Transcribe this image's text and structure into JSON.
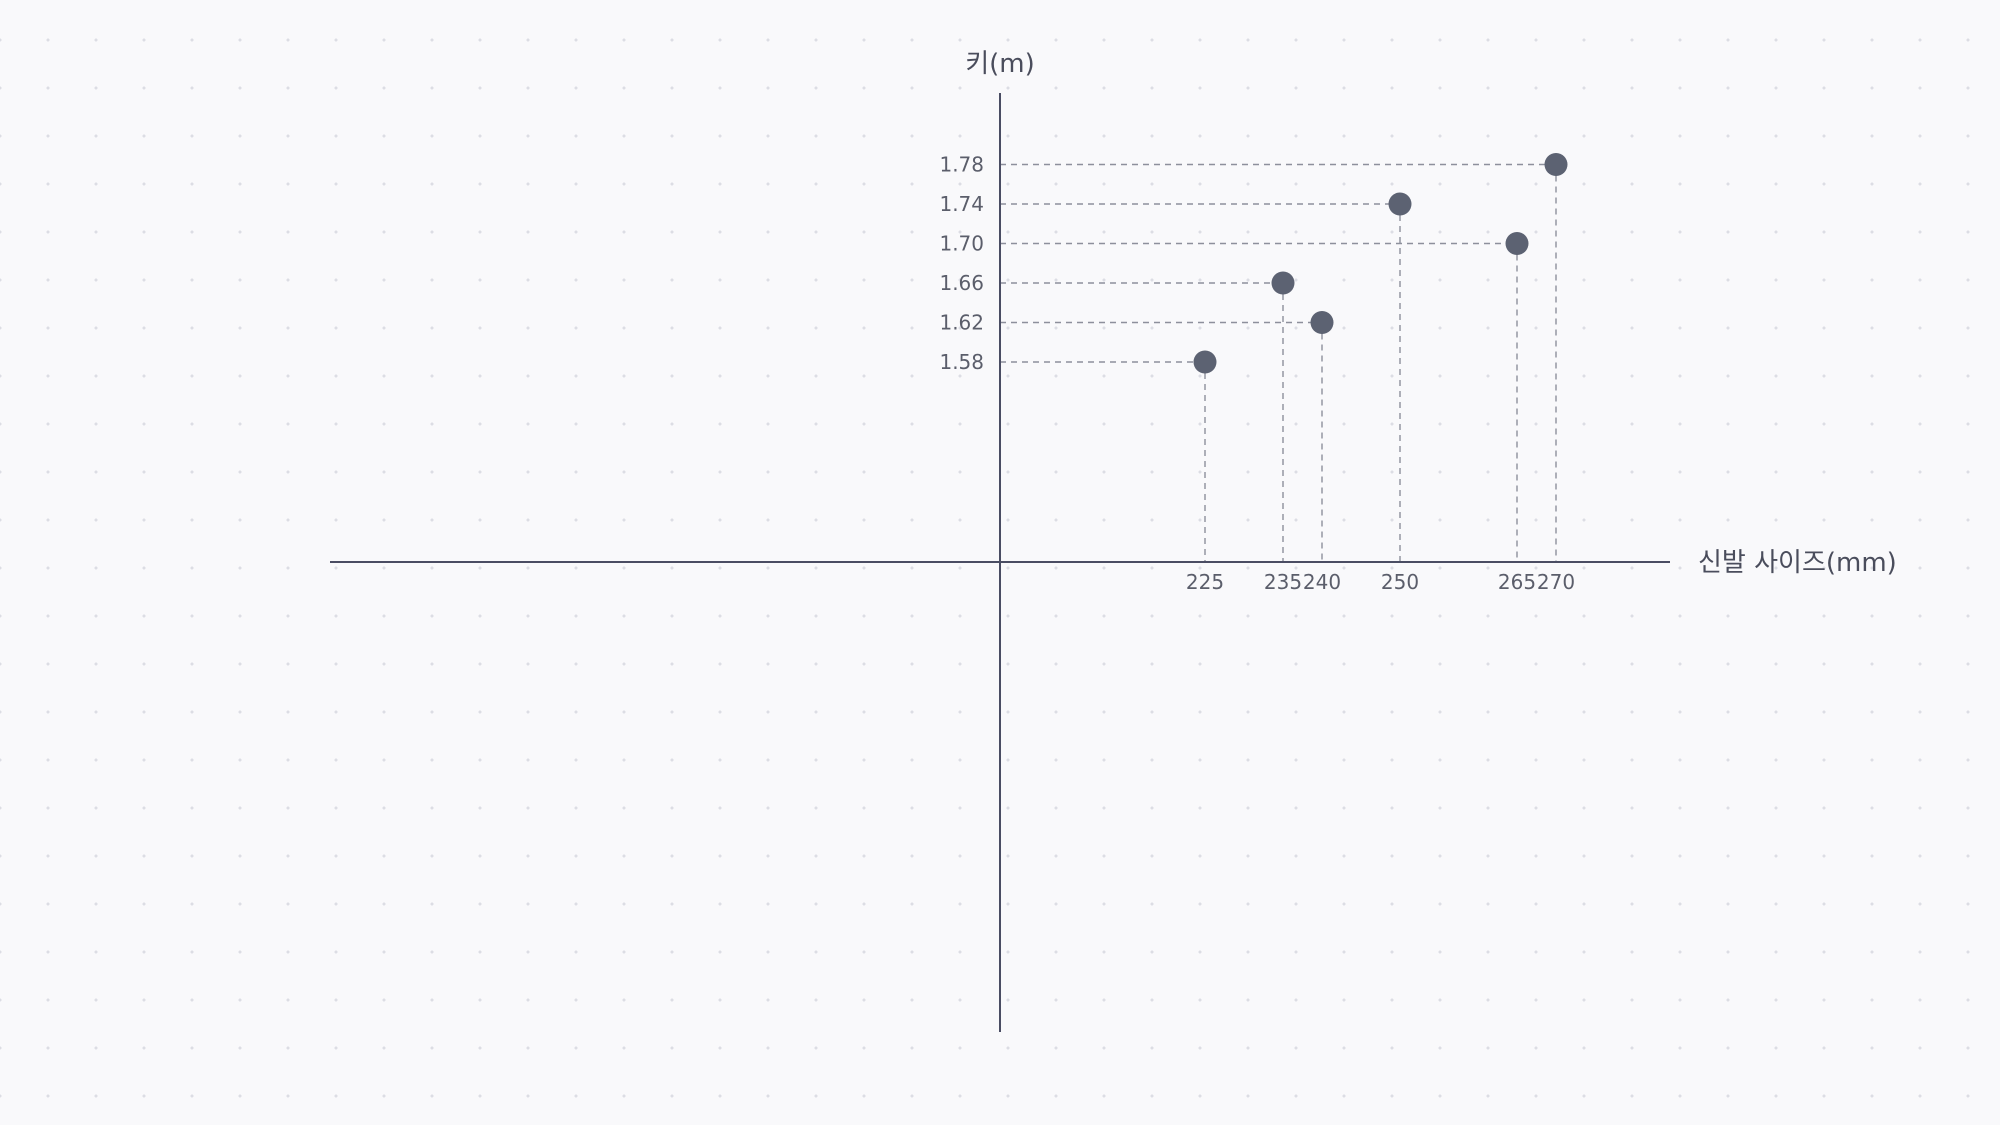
{
  "chart_data": {
    "type": "scatter",
    "xlabel": "신발 사이즈(mm)",
    "ylabel": "키(m)",
    "x_ticks": [
      "225",
      "235",
      "240",
      "250",
      "265",
      "270"
    ],
    "y_ticks": [
      "1.78",
      "1.74",
      "1.70",
      "1.66",
      "1.62",
      "1.58"
    ],
    "points": [
      {
        "x": 225,
        "y": 1.58
      },
      {
        "x": 235,
        "y": 1.66
      },
      {
        "x": 240,
        "y": 1.62
      },
      {
        "x": 250,
        "y": 1.74
      },
      {
        "x": 265,
        "y": 1.7
      },
      {
        "x": 270,
        "y": 1.78
      }
    ],
    "grid": false,
    "guides": "dashed projection lines from each point to both axes",
    "colors": {
      "point": "#5c6272",
      "axis": "#4a4d63",
      "guide": "#8d909c",
      "background": "#f9f9fb"
    }
  }
}
